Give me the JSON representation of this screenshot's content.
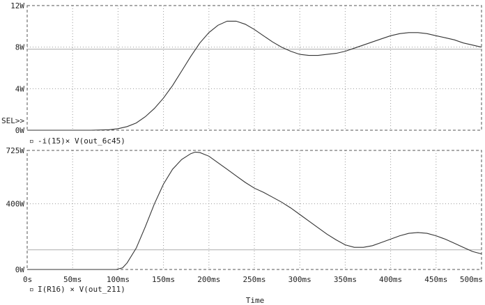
{
  "chart_data": [
    {
      "type": "line",
      "title": "",
      "xlabel": "",
      "ylabel": "",
      "xlim": [
        0,
        500
      ],
      "ylim": [
        0,
        12
      ],
      "yticks": [
        0,
        4,
        8,
        12
      ],
      "ytick_labels": [
        "0W",
        "4W",
        "8W",
        "12W"
      ],
      "grid": true,
      "selection_marker": "SEL>>",
      "legend": {
        "marker": "▫",
        "text": "-i(15)× V(out_6c45)"
      },
      "cursor_y": 7.8,
      "series": [
        {
          "name": "-i(15)× V(out_6c45)",
          "x": [
            0,
            70,
            90,
            100,
            110,
            120,
            130,
            140,
            150,
            160,
            170,
            180,
            190,
            200,
            210,
            220,
            230,
            240,
            250,
            260,
            270,
            280,
            290,
            300,
            310,
            320,
            330,
            340,
            350,
            360,
            370,
            380,
            390,
            400,
            410,
            420,
            430,
            440,
            450,
            460,
            470,
            480,
            490,
            500
          ],
          "y": [
            0,
            0,
            0.05,
            0.15,
            0.35,
            0.7,
            1.3,
            2.1,
            3.1,
            4.3,
            5.7,
            7.1,
            8.4,
            9.4,
            10.1,
            10.5,
            10.5,
            10.2,
            9.7,
            9.1,
            8.5,
            8.0,
            7.6,
            7.3,
            7.2,
            7.2,
            7.3,
            7.4,
            7.6,
            7.9,
            8.2,
            8.5,
            8.8,
            9.1,
            9.3,
            9.4,
            9.4,
            9.3,
            9.1,
            8.9,
            8.7,
            8.4,
            8.2,
            8.0
          ]
        }
      ]
    },
    {
      "type": "line",
      "title": "",
      "xlabel": "Time",
      "ylabel": "",
      "xlim": [
        0,
        500
      ],
      "ylim": [
        0,
        725
      ],
      "yticks": [
        0,
        400,
        725
      ],
      "ytick_labels": [
        "0W",
        "400W",
        "725W"
      ],
      "x_ticks": [
        0,
        50,
        100,
        150,
        200,
        250,
        300,
        350,
        400,
        450,
        500
      ],
      "x_tick_labels": [
        "0s",
        "50ms",
        "100ms",
        "150ms",
        "200ms",
        "250ms",
        "300ms",
        "350ms",
        "400ms",
        "450ms",
        "500ms"
      ],
      "grid": true,
      "legend": {
        "marker": "▫",
        "text": "I(R16) × V(out_211)"
      },
      "cursor_y": 120,
      "series": [
        {
          "name": "I(R16) × V(out_211)",
          "x": [
            0,
            98,
            105,
            110,
            120,
            130,
            140,
            150,
            160,
            170,
            180,
            185,
            190,
            200,
            210,
            220,
            230,
            240,
            250,
            260,
            270,
            280,
            290,
            300,
            310,
            320,
            330,
            340,
            350,
            360,
            370,
            380,
            390,
            400,
            410,
            420,
            430,
            440,
            450,
            460,
            470,
            480,
            490,
            500
          ],
          "y": [
            0,
            0,
            10,
            40,
            130,
            260,
            400,
            520,
            610,
            670,
            705,
            715,
            712,
            690,
            650,
            610,
            570,
            530,
            495,
            470,
            440,
            410,
            375,
            335,
            295,
            255,
            215,
            180,
            150,
            135,
            135,
            145,
            165,
            185,
            205,
            220,
            225,
            220,
            205,
            185,
            160,
            135,
            110,
            95
          ]
        }
      ]
    }
  ]
}
